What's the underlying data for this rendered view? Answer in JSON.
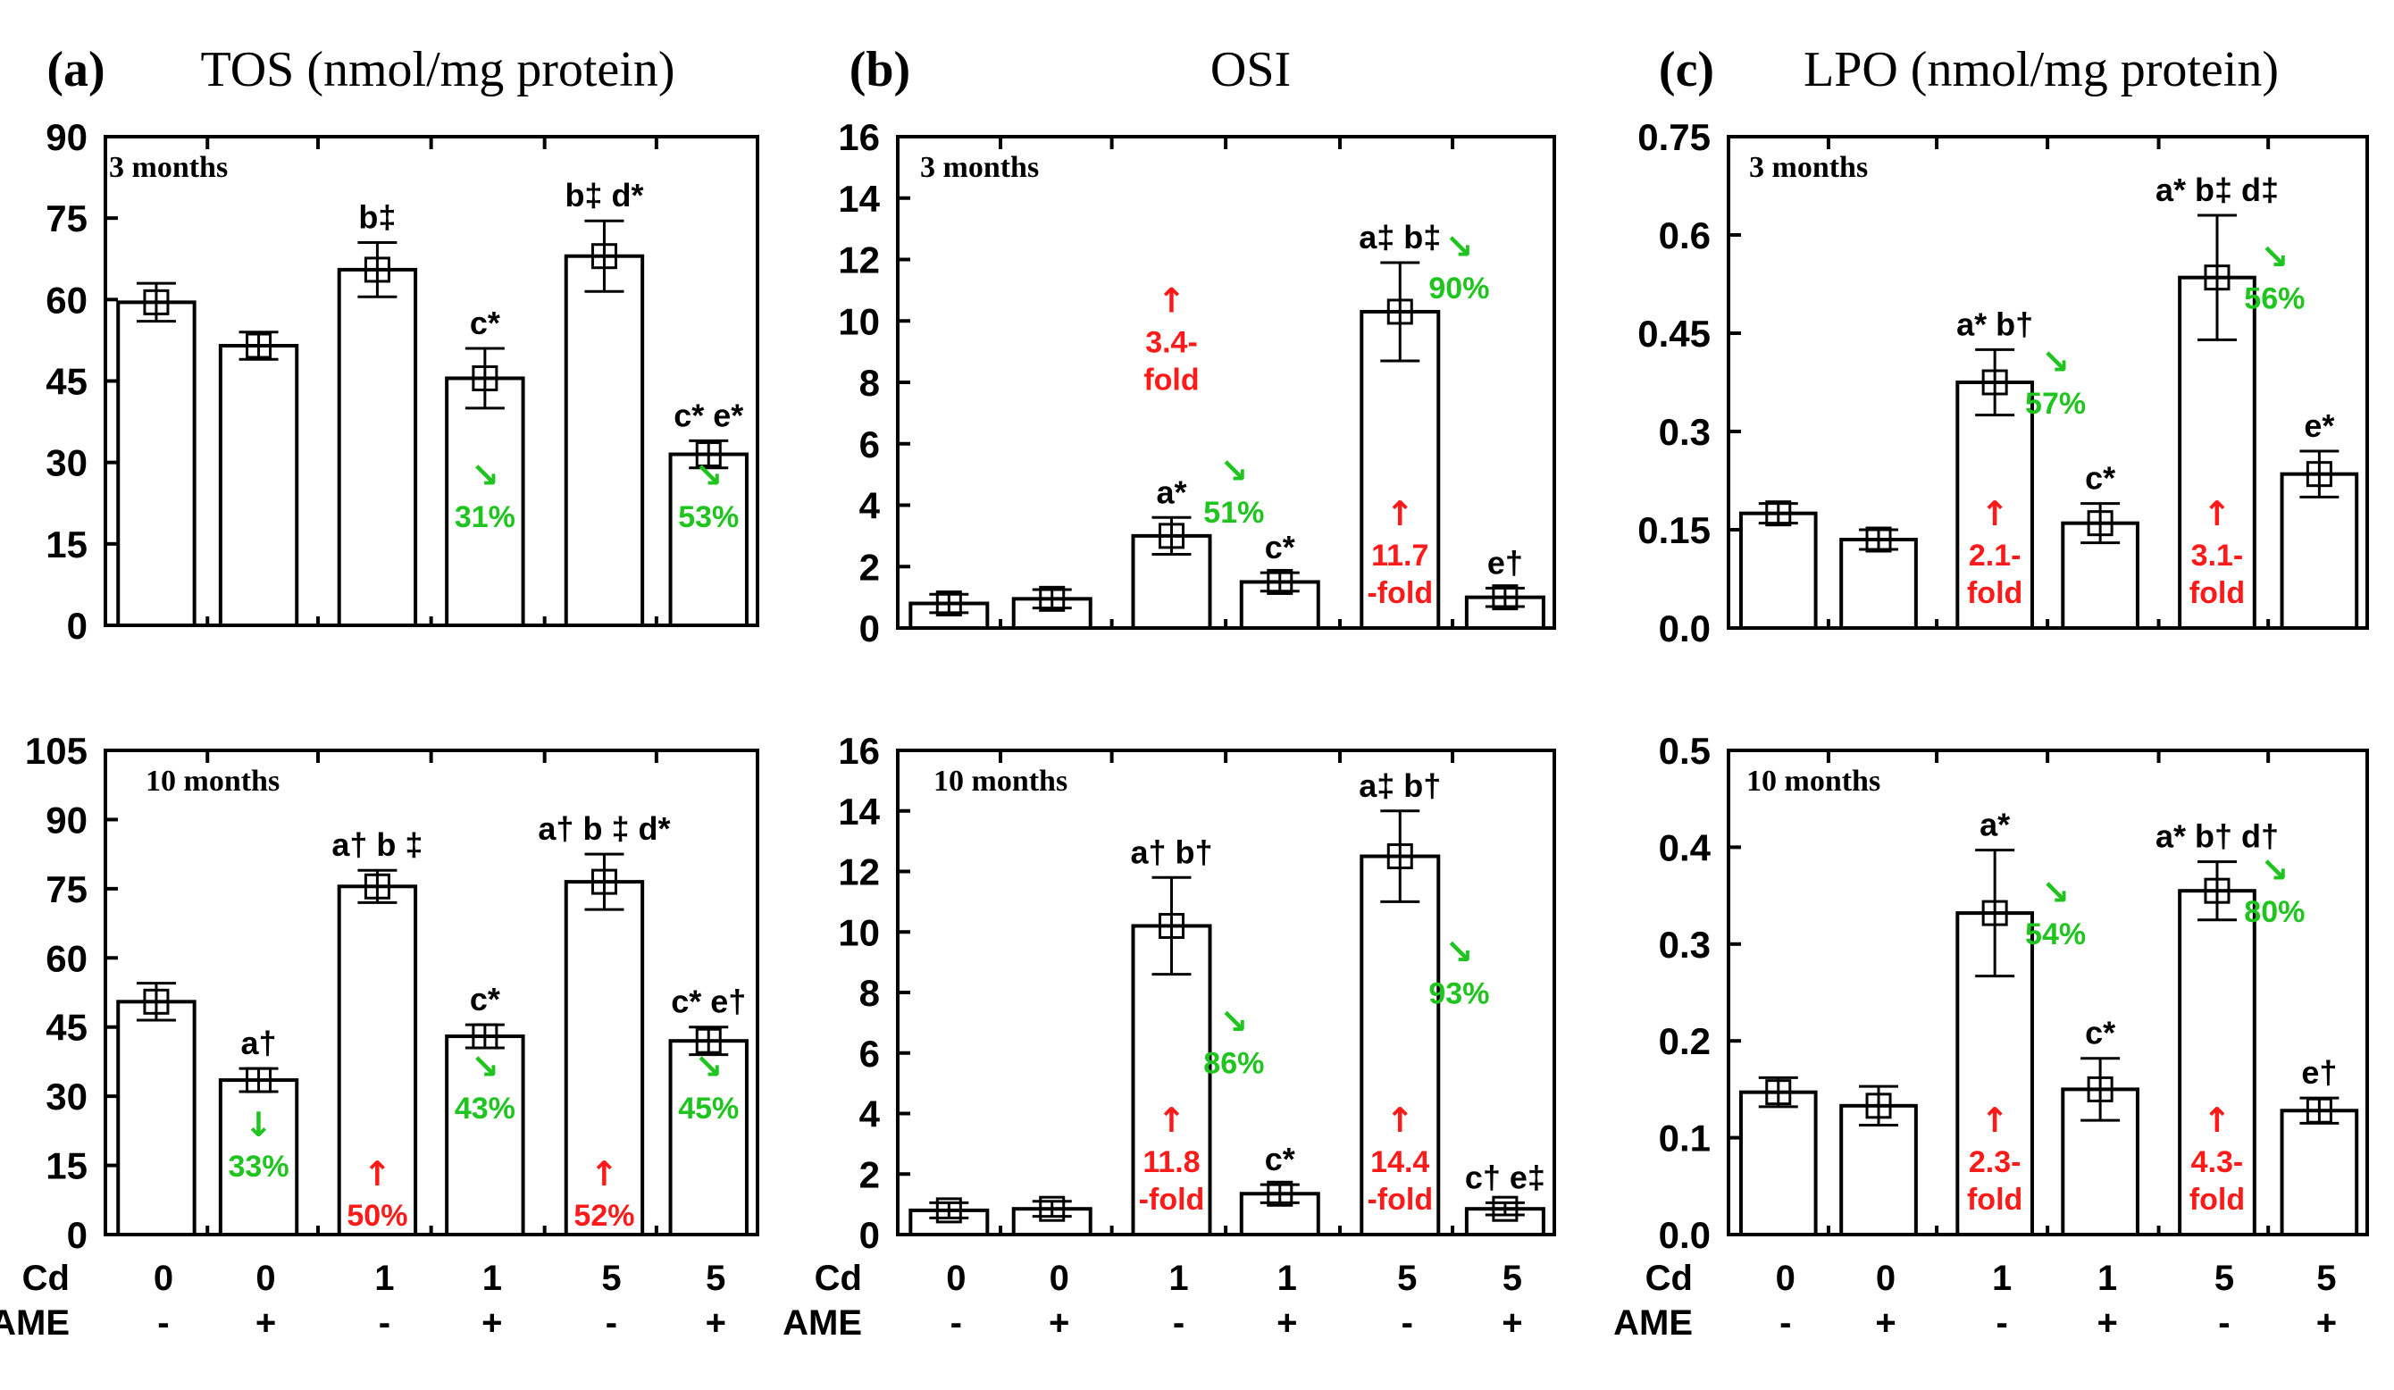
{
  "figure": {
    "x_rows": {
      "cd_label": "Cd",
      "ame_label": "AME",
      "cd": [
        "0",
        "0",
        "1",
        "1",
        "5",
        "5"
      ],
      "ame": [
        "-",
        "+",
        "-",
        "+",
        "-",
        "+"
      ]
    }
  },
  "chart_data": [
    {
      "type": "bar",
      "panel_letter": "(a)",
      "title": "TOS (nmol/mg protein)",
      "show_title": true,
      "subtitle": "3 months",
      "ylim": [
        0,
        90
      ],
      "yticks": [
        "0",
        "15",
        "30",
        "45",
        "60",
        "75",
        "90"
      ],
      "values": [
        59.5,
        51.5,
        65.5,
        45.5,
        68,
        31.5
      ],
      "errors": [
        3.5,
        2.5,
        5,
        5.5,
        6.5,
        2.5
      ],
      "labels": [
        "",
        "",
        "b‡",
        "c*",
        "b‡ d*",
        "c* e*"
      ],
      "changes": [
        null,
        null,
        null,
        {
          "dir": "down",
          "text": "31%"
        },
        null,
        {
          "dir": "down",
          "text": "53%"
        }
      ]
    },
    {
      "type": "bar",
      "panel_letter": "(b)",
      "title": "OSI",
      "show_title": true,
      "subtitle": "3 months",
      "ylim": [
        0,
        16
      ],
      "yticks": [
        "0",
        "2",
        "4",
        "6",
        "8",
        "10",
        "12",
        "14",
        "16"
      ],
      "values": [
        0.8,
        0.95,
        3,
        1.5,
        10.3,
        1
      ],
      "errors": [
        0.3,
        0.3,
        0.6,
        0.3,
        1.6,
        0.3
      ],
      "labels": [
        "",
        "",
        "a*",
        "c*",
        "a‡ b‡",
        "e†"
      ],
      "changes": [
        null,
        null,
        {
          "dir": "up",
          "text": "3.4-fold"
        },
        {
          "dir": "down",
          "text": "51%"
        },
        {
          "dir": "up",
          "text": "11.7-fold"
        },
        {
          "dir": "down",
          "text": "90%"
        }
      ]
    },
    {
      "type": "bar",
      "panel_letter": "(c)",
      "title": "LPO (nmol/mg protein)",
      "show_title": true,
      "subtitle": "3 months",
      "ylim": [
        0,
        0.75
      ],
      "yticks": [
        "0.0",
        "0.15",
        "0.3",
        "0.45",
        "0.6",
        "0.75"
      ],
      "values": [
        0.175,
        0.135,
        0.375,
        0.16,
        0.535,
        0.235
      ],
      "errors": [
        0.015,
        0.015,
        0.05,
        0.03,
        0.095,
        0.035
      ],
      "labels": [
        "",
        "",
        "a* b†",
        "c*",
        "a* b‡ d‡",
        "e*"
      ],
      "changes": [
        null,
        null,
        {
          "dir": "up",
          "text": "2.1-fold"
        },
        {
          "dir": "down",
          "text": "57%"
        },
        {
          "dir": "up",
          "text": "3.1-fold"
        },
        {
          "dir": "down",
          "text": "56%"
        }
      ]
    },
    {
      "type": "bar",
      "panel_letter": "",
      "title": "",
      "show_title": false,
      "subtitle": "10 months",
      "ylim": [
        0,
        105
      ],
      "yticks": [
        "0",
        "15",
        "30",
        "45",
        "60",
        "75",
        "90",
        "105"
      ],
      "values": [
        50.5,
        33.5,
        75.5,
        43,
        76.5,
        42
      ],
      "errors": [
        4,
        2.5,
        3.5,
        2.5,
        6,
        3
      ],
      "labels": [
        "",
        "a†",
        "a† b ‡",
        "c*",
        "a† b ‡ d*",
        "c* e†"
      ],
      "changes": [
        null,
        {
          "dir": "down",
          "text": "33%"
        },
        {
          "dir": "up",
          "text": "50%"
        },
        {
          "dir": "down",
          "text": "43%"
        },
        {
          "dir": "up",
          "text": "52%"
        },
        {
          "dir": "down",
          "text": "45%"
        }
      ]
    },
    {
      "type": "bar",
      "panel_letter": "",
      "title": "",
      "show_title": false,
      "subtitle": "10 months",
      "ylim": [
        0,
        16
      ],
      "yticks": [
        "0",
        "2",
        "4",
        "6",
        "8",
        "10",
        "12",
        "14",
        "16"
      ],
      "values": [
        0.8,
        0.85,
        10.2,
        1.35,
        12.5,
        0.85
      ],
      "errors": [
        0.25,
        0.25,
        1.6,
        0.3,
        1.5,
        0.2
      ],
      "labels": [
        "",
        "",
        "a† b†",
        "c*",
        "a‡ b†",
        "c† e‡"
      ],
      "changes": [
        null,
        null,
        {
          "dir": "up",
          "text": "11.8-fold"
        },
        {
          "dir": "down",
          "text": "86%"
        },
        {
          "dir": "up",
          "text": "14.4-fold"
        },
        {
          "dir": "down",
          "text": "93%"
        }
      ]
    },
    {
      "type": "bar",
      "panel_letter": "",
      "title": "",
      "show_title": false,
      "subtitle": "10 months",
      "ylim": [
        0,
        0.5
      ],
      "yticks": [
        "0.0",
        "0.1",
        "0.2",
        "0.3",
        "0.4",
        "0.5"
      ],
      "values": [
        0.147,
        0.133,
        0.332,
        0.15,
        0.355,
        0.128
      ],
      "errors": [
        0.015,
        0.02,
        0.065,
        0.032,
        0.03,
        0.013
      ],
      "labels": [
        "",
        "",
        "a*",
        "c*",
        "a* b† d†",
        "e†"
      ],
      "changes": [
        null,
        null,
        {
          "dir": "up",
          "text": "2.3-fold"
        },
        {
          "dir": "down",
          "text": "54%"
        },
        {
          "dir": "up",
          "text": "4.3-fold"
        },
        {
          "dir": "down",
          "text": "80%"
        }
      ]
    }
  ]
}
